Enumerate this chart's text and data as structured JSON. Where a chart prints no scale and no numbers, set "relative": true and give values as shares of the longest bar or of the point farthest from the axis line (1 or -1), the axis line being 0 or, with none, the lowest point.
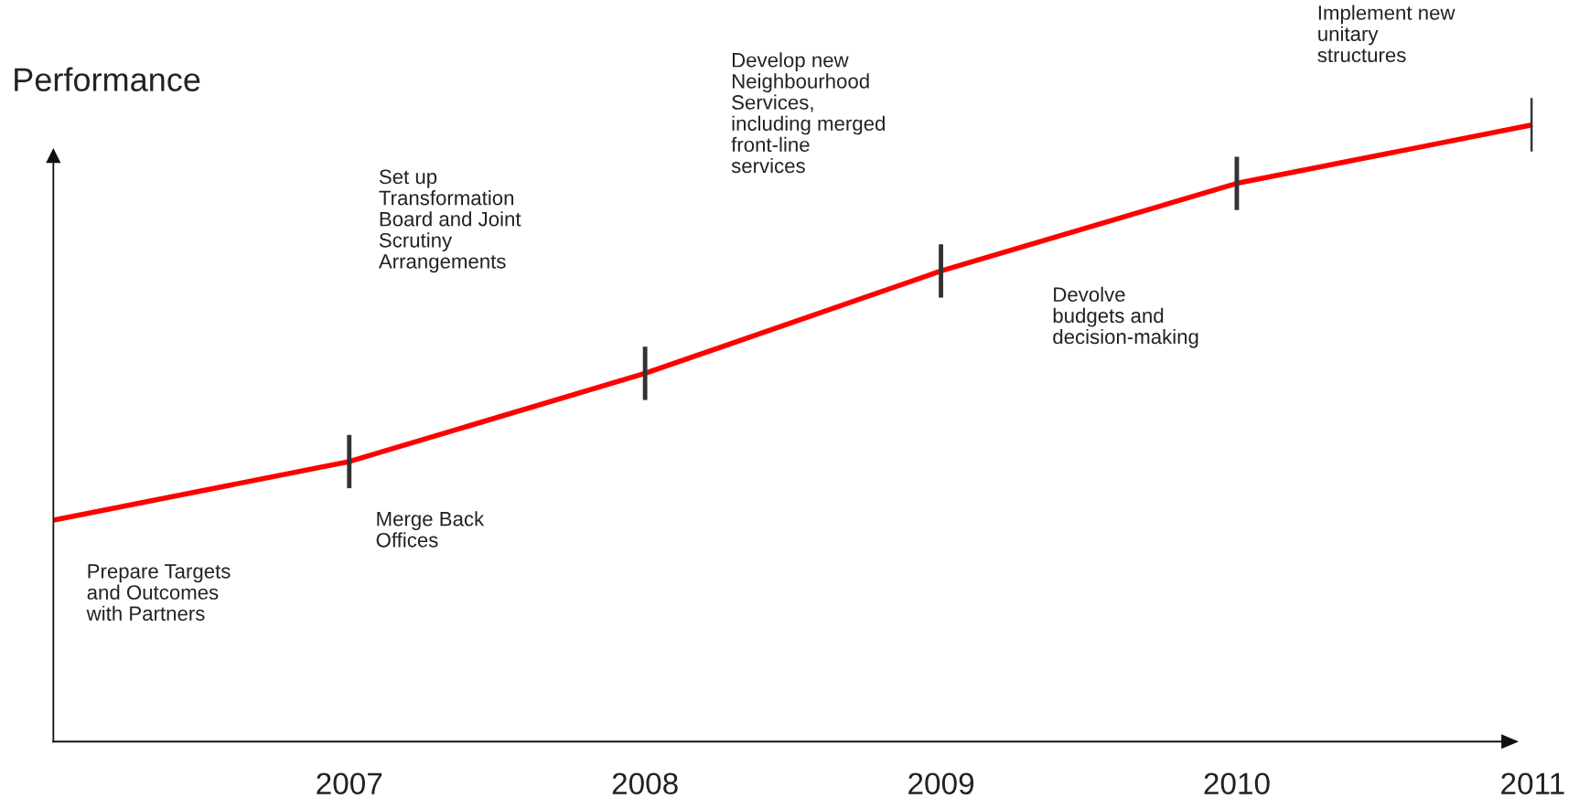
{
  "chart_data": {
    "type": "line",
    "ylabel": "Performance",
    "relative": true,
    "categories": [
      null,
      "2007",
      "2008",
      "2009",
      "2010",
      "2011"
    ],
    "series": [
      {
        "color": "#ff0000",
        "values": [
          0.359,
          0.454,
          0.597,
          0.763,
          0.905,
          1.0
        ]
      }
    ],
    "annotations": [
      "Prepare Targets\nand Outcomes\nwith Partners",
      "Merge Back\nOffices",
      "Set up\nTransformation\nBoard and Joint\nScrutiny\nArrangements",
      "Develop new\nNeighbourhood\nServices,\nincluding merged\nfront-line\nservices",
      "Devolve\nbudgets and\ndecision-making",
      "Implement new\nunitary\nstructures"
    ],
    "grid": false,
    "legend": false
  }
}
